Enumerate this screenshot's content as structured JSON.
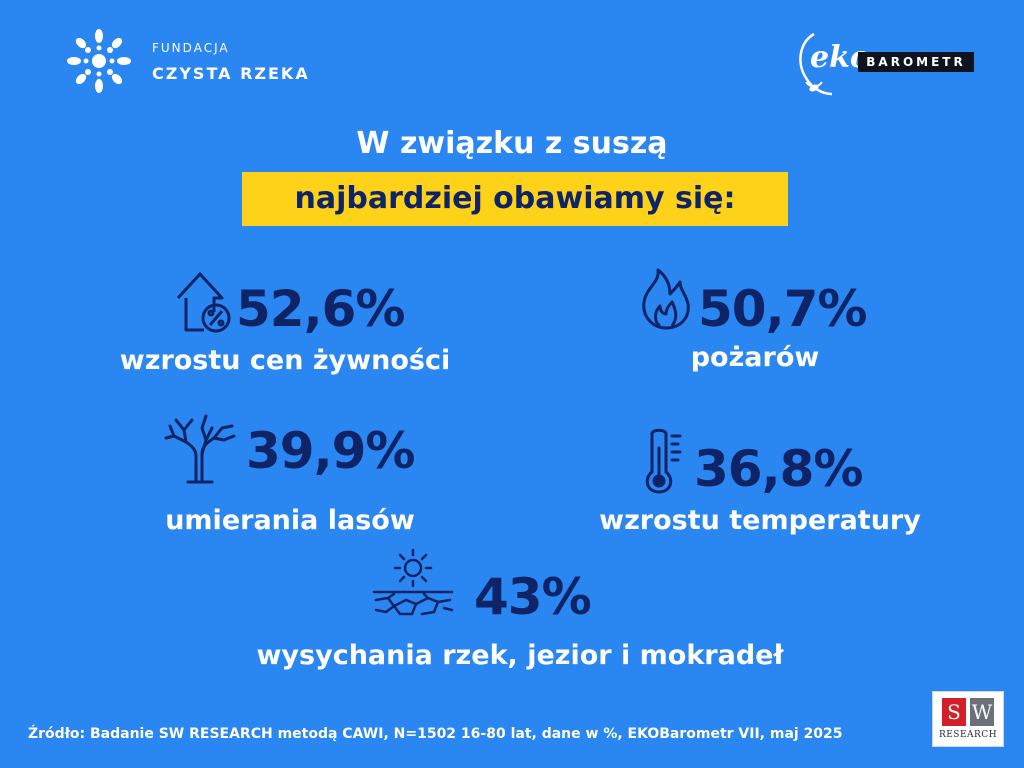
{
  "header": {
    "org_line1": "FUNDACJA",
    "org_line2": "CZYSTA RZEKA",
    "eko": "eko",
    "barometr": "BAROMETR"
  },
  "title": {
    "line1": "W związku z suszą",
    "line2": "najbardziej obawiamy się:"
  },
  "stats": [
    {
      "value": "52,6%",
      "label": "wzrostu cen żywności",
      "icon": "house-percent-icon"
    },
    {
      "value": "50,7%",
      "label": "pożarów",
      "icon": "fire-icon"
    },
    {
      "value": "39,9%",
      "label": "umierania lasów",
      "icon": "dead-tree-icon"
    },
    {
      "value": "36,8%",
      "label": "wzrostu temperatury",
      "icon": "thermometer-icon"
    },
    {
      "value": "43%",
      "label": "wysychania rzek, jezior i mokradeł",
      "icon": "sun-cracked-ground-icon"
    }
  ],
  "source": "Źródło: Badanie SW RESEARCH metodą CAWI, N=1502 16-80 lat, dane w %, EKOBarometr VII, maj 2025",
  "sw_logo": {
    "s": "S",
    "w": "W",
    "research": "RESEARCH"
  },
  "colors": {
    "background": "#2a86f0",
    "highlight": "#ffd21a",
    "dark_text": "#0e2466"
  }
}
